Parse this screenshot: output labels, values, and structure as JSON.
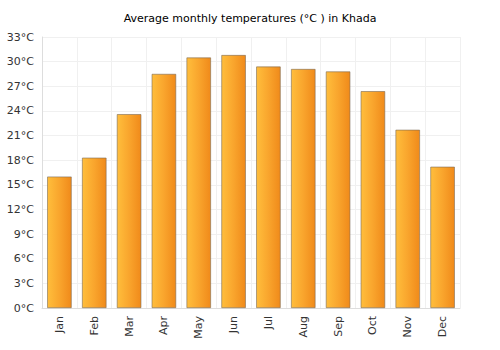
{
  "chart_data": {
    "type": "bar",
    "title": "Average monthly temperatures (°C ) in Khada",
    "categories": [
      "Jan",
      "Feb",
      "Mar",
      "Apr",
      "May",
      "Jun",
      "Jul",
      "Aug",
      "Sep",
      "Oct",
      "Nov",
      "Dec"
    ],
    "values": [
      16.0,
      18.3,
      23.6,
      28.5,
      30.5,
      30.8,
      29.4,
      29.1,
      28.8,
      26.4,
      21.7,
      17.2
    ],
    "color": "#f9a52d",
    "ylim": [
      0,
      33
    ],
    "yticks": [
      {
        "value": 0,
        "label": "0°C"
      },
      {
        "value": 3,
        "label": "3°C"
      },
      {
        "value": 6,
        "label": "6°C"
      },
      {
        "value": 9,
        "label": "9°C"
      },
      {
        "value": 12,
        "label": "12°C"
      },
      {
        "value": 15,
        "label": "15°C"
      },
      {
        "value": 18,
        "label": "18°C"
      },
      {
        "value": 21,
        "label": "21°C"
      },
      {
        "value": 24,
        "label": "24°C"
      },
      {
        "value": 27,
        "label": "27°C"
      },
      {
        "value": 30,
        "label": "30°C"
      },
      {
        "value": 33,
        "label": "33°C"
      }
    ],
    "grid": true
  }
}
